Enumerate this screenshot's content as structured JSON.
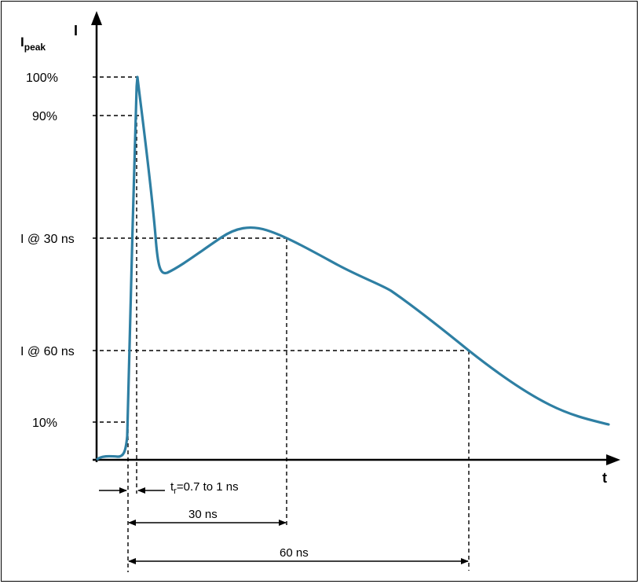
{
  "axes": {
    "y_label": "I",
    "y_ref_label_main": "I",
    "y_ref_label_sub": "peak",
    "x_label": "t"
  },
  "levels": {
    "l100": "100%",
    "l90": "90%",
    "l30": "I @ 30 ns",
    "l60": "I @ 60 ns",
    "l10": "10%"
  },
  "annotations": {
    "rise_main": "t",
    "rise_sub": "r",
    "rise_rest": "=0.7 to 1 ns",
    "span30": "30 ns",
    "span60": "60 ns"
  },
  "colors": {
    "curve": "#2e7fa3",
    "axis": "#000000"
  }
}
